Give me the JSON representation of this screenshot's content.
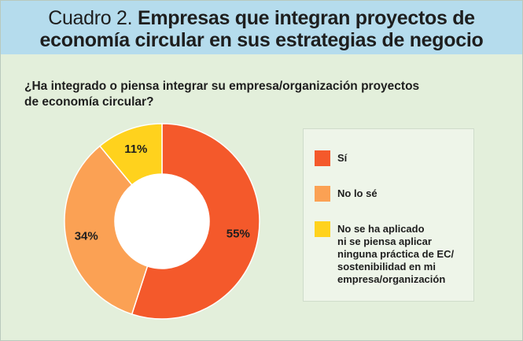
{
  "header": {
    "prefix": "Cuadro 2.",
    "line1": "Empresas que integran proyectos de",
    "line2": "economía circular en sus estrategias de negocio"
  },
  "question": {
    "line1": "¿Ha integrado o piensa integrar su empresa/organización proyectos",
    "line2": "de economía circular?"
  },
  "colors": {
    "header_bg": "#b5dced",
    "panel_bg": "#e3efdb",
    "si": "#f4592b",
    "no_lo_se": "#fba154",
    "no_aplicado": "#ffd21d"
  },
  "chart_data": {
    "type": "pie",
    "donut": true,
    "categories": [
      "Sí",
      "No lo sé",
      "No se ha aplicado ni se piensa aplicar ninguna práctica de EC/ sostenibilidad en mi empresa/organización"
    ],
    "values": [
      55,
      34,
      11
    ],
    "labels": [
      "55%",
      "34%",
      "11%"
    ],
    "colors": [
      "#f4592b",
      "#fba154",
      "#ffd21d"
    ],
    "legend_position": "right",
    "legend": [
      {
        "lines": [
          "Sí"
        ]
      },
      {
        "lines": [
          "No lo sé"
        ]
      },
      {
        "lines": [
          "No se ha aplicado",
          "ni se piensa aplicar",
          "ninguna práctica de EC/",
          "sostenibilidad en mi",
          "empresa/organización"
        ]
      }
    ]
  }
}
